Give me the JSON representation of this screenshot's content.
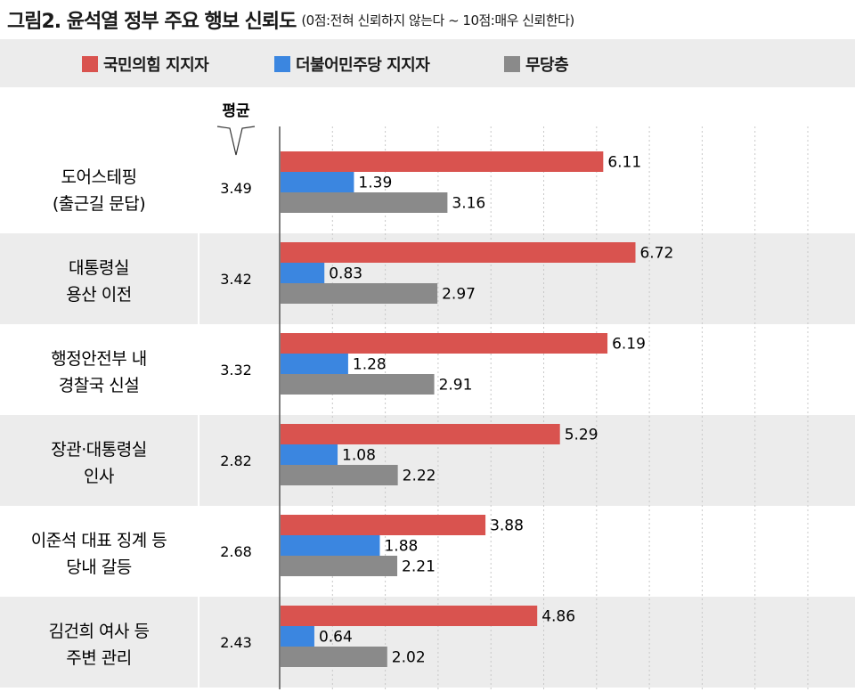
{
  "title": "그림2. 윤석열 정부 주요 행보 신뢰도",
  "note": "(0점:전혀 신뢰하지 않는다 ~ 10점:매우 신뢰한다)",
  "legend": [
    {
      "label": "국민의힘 지지자",
      "color": "#d9534f"
    },
    {
      "label": "더불어민주당 지지자",
      "color": "#3b86e0"
    },
    {
      "label": "무당층",
      "color": "#8a8a8a"
    }
  ],
  "avg_header": "평균",
  "colors": {
    "band": "#ececec",
    "axis": "#555555",
    "grid": "#c8c8c8"
  },
  "chart_data": {
    "type": "bar",
    "orientation": "horizontal",
    "xlim": [
      0,
      11
    ],
    "grid": true,
    "categories": [
      [
        "도어스테핑",
        "(출근길 문답)"
      ],
      [
        "대통령실",
        "용산 이전"
      ],
      [
        "행정안전부 내",
        "경찰국 신설"
      ],
      [
        "장관·대통령실",
        "인사"
      ],
      [
        "이준석 대표 징계 등",
        "당내 갈등"
      ],
      [
        "김건희 여사 등",
        "주변 관리"
      ]
    ],
    "averages": [
      "3.49",
      "3.42",
      "3.32",
      "2.82",
      "2.68",
      "2.43"
    ],
    "series": [
      {
        "name": "국민의힘 지지자",
        "values": [
          6.11,
          6.72,
          6.19,
          5.29,
          3.88,
          4.86
        ]
      },
      {
        "name": "더불어민주당 지지자",
        "values": [
          1.39,
          0.83,
          1.28,
          1.08,
          1.88,
          0.64
        ]
      },
      {
        "name": "무당층",
        "values": [
          3.16,
          2.97,
          2.91,
          2.22,
          2.21,
          2.02
        ]
      }
    ],
    "value_labels": [
      [
        "6.11",
        "1.39",
        "3.16"
      ],
      [
        "6.72",
        "0.83",
        "2.97"
      ],
      [
        "6.19",
        "1.28",
        "2.91"
      ],
      [
        "5.29",
        "1.08",
        "2.22"
      ],
      [
        "3.88",
        "1.88",
        "2.21"
      ],
      [
        "4.86",
        "0.64",
        "2.02"
      ]
    ]
  }
}
